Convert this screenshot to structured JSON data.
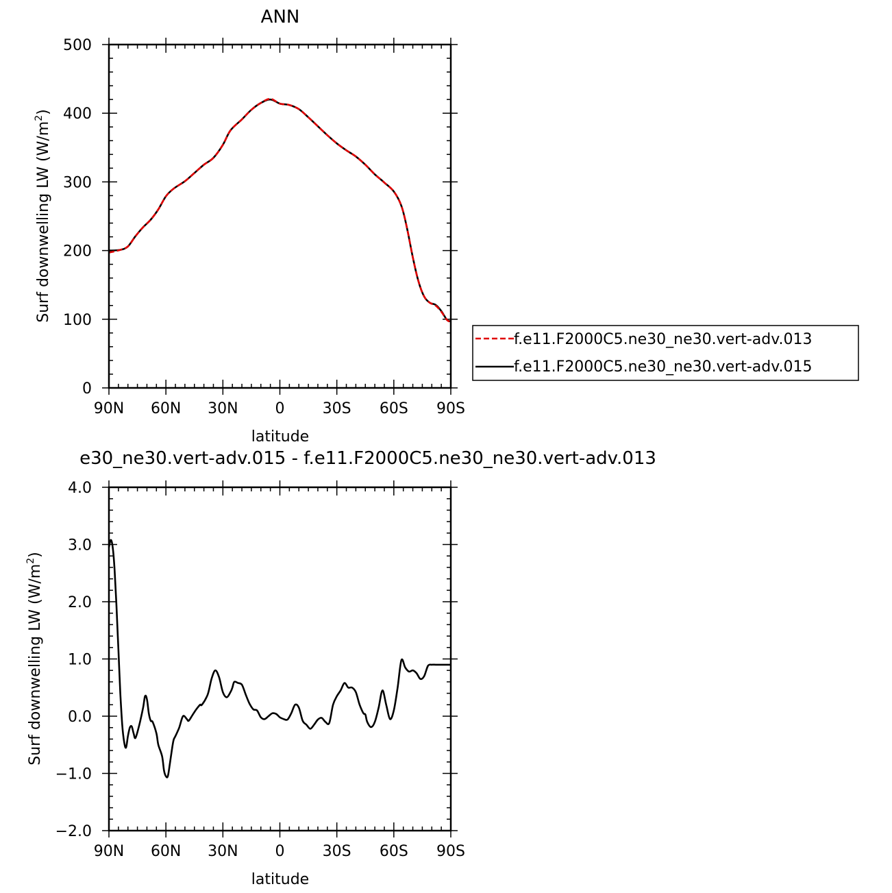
{
  "chart_data": [
    {
      "type": "line",
      "title": "ANN",
      "xlabel": "latitude",
      "ylabel_main": "Surf downwelling LW (W/m",
      "ylabel_sup": "2",
      "ylabel_close": ")",
      "xlim": [
        90,
        -90
      ],
      "ylim": [
        0,
        500
      ],
      "xticks": [
        90,
        60,
        30,
        0,
        -30,
        -60,
        -90
      ],
      "xtick_labels": [
        "90N",
        "60N",
        "30N",
        "0",
        "30S",
        "60S",
        "90S"
      ],
      "yticks": [
        0,
        100,
        200,
        300,
        400,
        500
      ],
      "ytick_labels": [
        "0",
        "100",
        "200",
        "300",
        "400",
        "500"
      ],
      "legend_position": "right-outside-bottom",
      "series": [
        {
          "name": "f.e11.F2000C5.ne30_ne30.vert-adv.013",
          "color": "#e00000",
          "dash": "dashed",
          "x": [
            90,
            84,
            80,
            76,
            72,
            68,
            64,
            60,
            56,
            50,
            45,
            40,
            35,
            30,
            26,
            20,
            15,
            10,
            5,
            0,
            -5,
            -10,
            -15,
            -20,
            -25,
            -30,
            -35,
            -40,
            -45,
            -50,
            -55,
            -60,
            -64,
            -67,
            -70,
            -73,
            -76,
            -79,
            -82,
            -85,
            -88,
            -90
          ],
          "y": [
            197,
            201,
            206,
            221,
            234,
            245,
            260,
            279,
            290,
            301,
            313,
            325,
            335,
            354,
            375,
            391,
            405,
            415,
            421,
            414,
            412,
            406,
            394,
            381,
            368,
            356,
            346,
            337,
            325,
            311,
            299,
            286,
            265,
            232,
            190,
            155,
            133,
            124,
            120,
            111,
            99,
            96
          ]
        },
        {
          "name": "f.e11.F2000C5.ne30_ne30.vert-adv.015",
          "color": "#000000",
          "dash": "solid",
          "x": [
            90,
            84,
            80,
            76,
            72,
            68,
            64,
            60,
            56,
            50,
            45,
            40,
            35,
            30,
            26,
            20,
            15,
            10,
            5,
            0,
            -5,
            -10,
            -15,
            -20,
            -25,
            -30,
            -35,
            -40,
            -45,
            -50,
            -55,
            -60,
            -64,
            -67,
            -70,
            -73,
            -76,
            -79,
            -82,
            -85,
            -88,
            -90
          ],
          "y": [
            200,
            201,
            206,
            221,
            234,
            245,
            260,
            279,
            290,
            301,
            313,
            325,
            335,
            354,
            375,
            391,
            405,
            415,
            420,
            414,
            412,
            406,
            394,
            381,
            368,
            356,
            346,
            337,
            325,
            311,
            299,
            286,
            265,
            232,
            190,
            155,
            133,
            124,
            121,
            112,
            99,
            97
          ]
        }
      ]
    },
    {
      "type": "line",
      "title": "e30_ne30.vert-adv.015 - f.e11.F2000C5.ne30_ne30.vert-adv.013",
      "xlabel": "latitude",
      "ylabel_main": "Surf downwelling LW (W/m",
      "ylabel_sup": "2",
      "ylabel_close": ")",
      "xlim": [
        90,
        -90
      ],
      "ylim": [
        -2.0,
        4.0
      ],
      "xticks": [
        90,
        60,
        30,
        0,
        -30,
        -60,
        -90
      ],
      "xtick_labels": [
        "90N",
        "60N",
        "30N",
        "0",
        "30S",
        "60S",
        "90S"
      ],
      "yticks": [
        -2,
        -1,
        0,
        1,
        2,
        3,
        4
      ],
      "ytick_labels": [
        "-2.0",
        "-1.0",
        "0.0",
        "1.0",
        "2.0",
        "3.0",
        "4.0"
      ],
      "series": [
        {
          "color": "#000000",
          "dash": "solid",
          "x": [
            90,
            89,
            88,
            87,
            86,
            85,
            84,
            83,
            82,
            81,
            80,
            79,
            78,
            77,
            76,
            74,
            72,
            71,
            70,
            69,
            68,
            67,
            65,
            64,
            62,
            61,
            60,
            59,
            58,
            57,
            56,
            55,
            53,
            51,
            49,
            48,
            46,
            44,
            42,
            41,
            38,
            36,
            34,
            32,
            30,
            28,
            26,
            25,
            24,
            22,
            20,
            18,
            16,
            14,
            12,
            10,
            8,
            6,
            4,
            2,
            0,
            -2,
            -4,
            -6,
            -8,
            -10,
            -12,
            -14,
            -16,
            -18,
            -20,
            -22,
            -24,
            -26,
            -28,
            -30,
            -32,
            -34,
            -36,
            -38,
            -40,
            -42,
            -44,
            -45,
            -46,
            -48,
            -50,
            -52,
            -54,
            -56,
            -58,
            -60,
            -62,
            -64,
            -66,
            -68,
            -70,
            -72,
            -74,
            -76,
            -78,
            -80,
            -82,
            -84,
            -86,
            -88,
            -90
          ],
          "y": [
            2.95,
            3.08,
            2.95,
            2.55,
            1.9,
            1.15,
            0.4,
            -0.15,
            -0.45,
            -0.55,
            -0.35,
            -0.2,
            -0.18,
            -0.3,
            -0.38,
            -0.15,
            0.15,
            0.35,
            0.3,
            0.05,
            -0.08,
            -0.1,
            -0.3,
            -0.5,
            -0.7,
            -0.95,
            -1.05,
            -1.05,
            -0.85,
            -0.62,
            -0.42,
            -0.35,
            -0.2,
            0.0,
            -0.05,
            -0.08,
            0.02,
            0.12,
            0.2,
            0.2,
            0.38,
            0.65,
            0.8,
            0.68,
            0.42,
            0.33,
            0.42,
            0.5,
            0.6,
            0.58,
            0.55,
            0.38,
            0.22,
            0.12,
            0.1,
            -0.02,
            -0.05,
            0.0,
            0.05,
            0.04,
            -0.02,
            -0.05,
            -0.06,
            0.05,
            0.2,
            0.15,
            -0.08,
            -0.15,
            -0.22,
            -0.15,
            -0.06,
            -0.03,
            -0.1,
            -0.12,
            0.2,
            0.35,
            0.45,
            0.58,
            0.5,
            0.5,
            0.42,
            0.2,
            0.05,
            0.03,
            -0.1,
            -0.19,
            -0.1,
            0.15,
            0.45,
            0.2,
            -0.05,
            0.1,
            0.5,
            0.98,
            0.85,
            0.78,
            0.8,
            0.75,
            0.65,
            0.7,
            0.88,
            0.9,
            0.9,
            0.9,
            0.9,
            0.9,
            0.9
          ]
        }
      ]
    }
  ]
}
